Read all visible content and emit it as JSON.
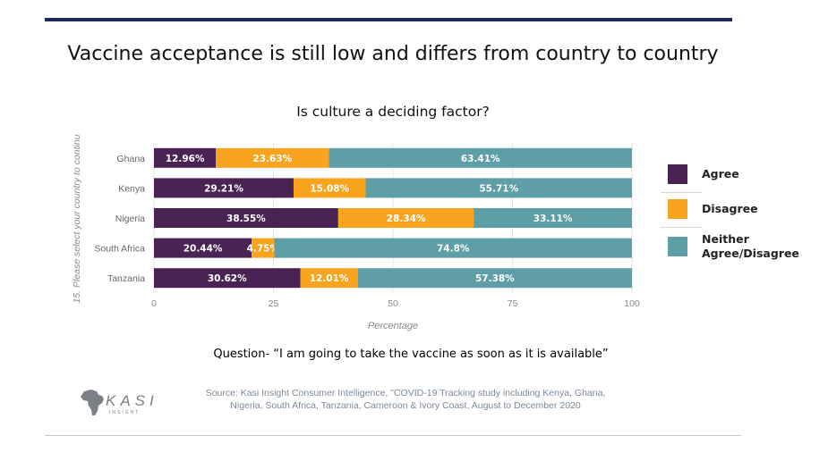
{
  "slide": {
    "title": "Vaccine acceptance is still low and differs from country to country",
    "question": "Question- “I am going to take the vaccine as soon as it is available”",
    "source_line1": "Source: Kasi Insight Consumer Intelligence, \"COVID-19 Tracking study  including Kenya, Ghana,",
    "source_line2": "Nigeria, South Africa, Tanzania, Cameroon & Ivory Coast, August to December 2020",
    "logo_text": "KASI",
    "logo_subtext": "INSIGHT"
  },
  "colors": {
    "agree": "#4a2355",
    "disagree": "#f9a41f",
    "neither": "#5e9ea6",
    "rule": "#1f2a5c"
  },
  "chart_data": {
    "type": "bar",
    "orientation": "horizontal",
    "stacked": true,
    "title": "Is culture a deciding factor?",
    "xlabel": "Percentage",
    "ylabel": "15. Please select your country to continu",
    "xlim": [
      0,
      100
    ],
    "xticks": [
      0,
      25,
      50,
      75,
      100
    ],
    "grid": true,
    "legend_position": "right",
    "categories": [
      "Ghana",
      "Kenya",
      "Nigeria",
      "South Africa",
      "Tanzania"
    ],
    "series": [
      {
        "name": "Agree",
        "color": "#4a2355",
        "values": [
          12.96,
          29.21,
          38.55,
          20.44,
          30.62
        ],
        "labels": [
          "12.96%",
          "29.21%",
          "38.55%",
          "20.44%",
          "30.62%"
        ]
      },
      {
        "name": "Disagree",
        "color": "#f9a41f",
        "values": [
          23.63,
          15.08,
          28.34,
          4.75,
          12.01
        ],
        "labels": [
          "23.63%",
          "15.08%",
          "28.34%",
          "4.75%",
          "12.01%"
        ]
      },
      {
        "name": "Neither Agree/Disagree",
        "color": "#5e9ea6",
        "values": [
          63.41,
          55.71,
          33.11,
          74.8,
          57.38
        ],
        "labels": [
          "63.41%",
          "55.71%",
          "33.11%",
          "74.8%",
          "57.38%"
        ]
      }
    ],
    "legend": [
      {
        "label": "Agree",
        "color": "#4a2355"
      },
      {
        "label": "Disagree",
        "color": "#f9a41f"
      },
      {
        "label": "Neither\nAgree/Disagree",
        "color": "#5e9ea6"
      }
    ]
  }
}
